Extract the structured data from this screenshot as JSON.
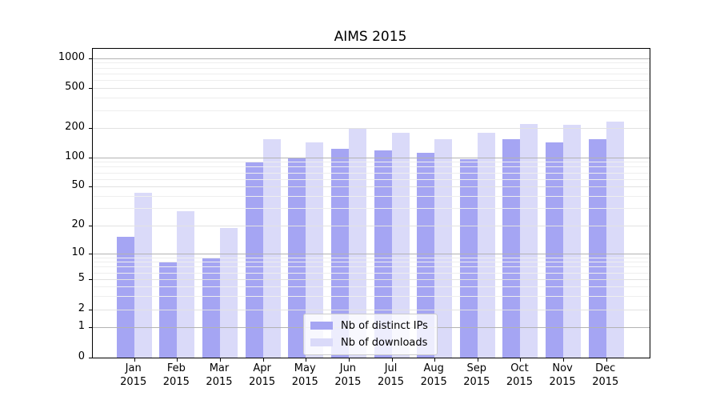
{
  "title": "AIMS 2015",
  "colors": {
    "ips_bar": "#a5a5f3",
    "downloads_bar": "#dadaf9",
    "grid_decade": "#b3b3b3",
    "grid_labeled": "#e2e2e2",
    "grid_minor": "#eeeeee",
    "axis_frame": "#000000",
    "legend_border": "#cccccc"
  },
  "legend": {
    "items": [
      {
        "label": "Nb of distinct IPs",
        "color_key": "ips_bar"
      },
      {
        "label": "Nb of downloads",
        "color_key": "downloads_bar"
      }
    ]
  },
  "y_axis": {
    "tick_values": [
      0,
      1,
      2,
      5,
      10,
      20,
      50,
      100,
      200,
      500,
      1000
    ],
    "tick_labels": [
      "0",
      "1",
      "2",
      "5",
      "10",
      "20",
      "50",
      "100",
      "200",
      "500",
      "1000"
    ]
  },
  "x_axis": {
    "months": [
      "Jan",
      "Feb",
      "Mar",
      "Apr",
      "May",
      "Jun",
      "Jul",
      "Aug",
      "Sep",
      "Oct",
      "Nov",
      "Dec"
    ],
    "year": "2015"
  },
  "chart_data": {
    "type": "bar",
    "title": "AIMS 2015",
    "categories": [
      "Jan 2015",
      "Feb 2015",
      "Mar 2015",
      "Apr 2015",
      "May 2015",
      "Jun 2015",
      "Jul 2015",
      "Aug 2015",
      "Sep 2015",
      "Oct 2015",
      "Nov 2015",
      "Dec 2015"
    ],
    "series": [
      {
        "name": "Nb of distinct IPs",
        "color": "#a5a5f3",
        "values": [
          15,
          8,
          9,
          88,
          100,
          123,
          118,
          112,
          95,
          154,
          143,
          154
        ]
      },
      {
        "name": "Nb of downloads",
        "color": "#dadaf9",
        "values": [
          43,
          28,
          19,
          154,
          142,
          198,
          179,
          154,
          178,
          221,
          214,
          232
        ]
      }
    ],
    "yscale": "symlog",
    "yticks": [
      0,
      1,
      2,
      5,
      10,
      20,
      50,
      100,
      200,
      500,
      1000
    ],
    "ylim": [
      0,
      1300
    ],
    "grid": "both, drawn above bars",
    "legend_position": "lower center"
  }
}
